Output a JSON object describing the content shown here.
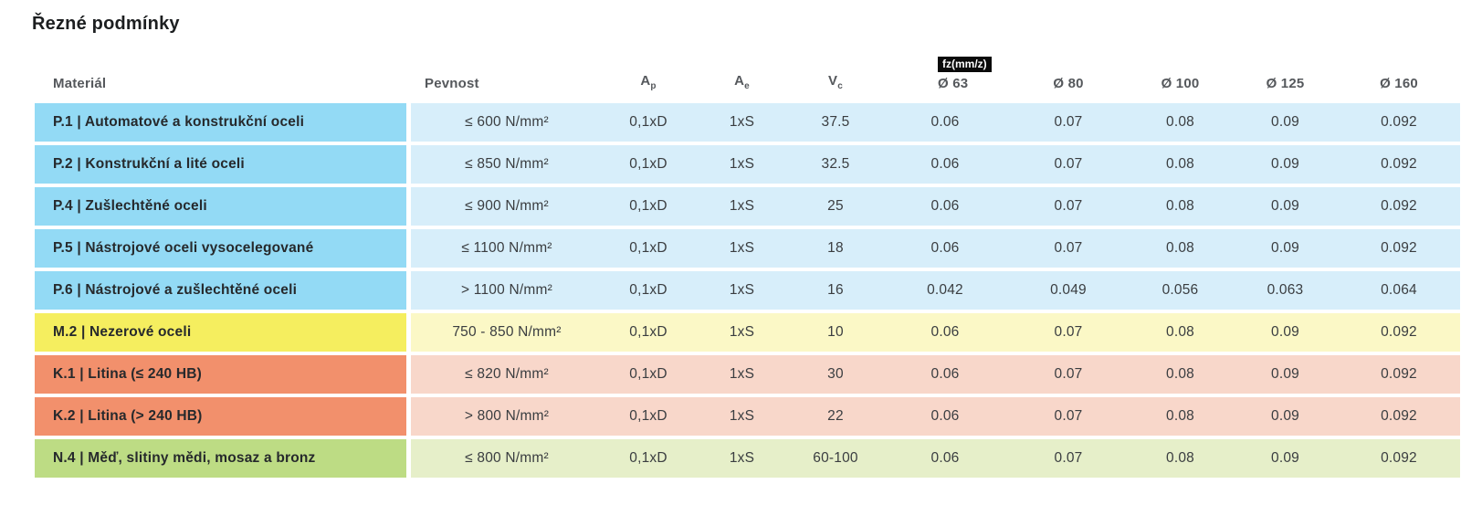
{
  "title": "Řezné podmínky",
  "table": {
    "headers": {
      "material": "Materiál",
      "pevnost": "Pevnost",
      "ap_base": "A",
      "ap_sub": "p",
      "ae_base": "A",
      "ae_sub": "e",
      "vc_base": "V",
      "vc_sub": "c",
      "fz_badge": "fz(mm/z)",
      "d63": "Ø 63",
      "d80": "Ø 80",
      "d100": "Ø 100",
      "d125": "Ø 125",
      "d160": "Ø 160"
    },
    "rows": [
      {
        "group": "blue",
        "material": "P.1 | Automatové a konstrukční oceli",
        "pevnost": "≤ 600 N/mm²",
        "ap": "0,1xD",
        "ae": "1xS",
        "vc": "37.5",
        "d63": "0.06",
        "d80": "0.07",
        "d100": "0.08",
        "d125": "0.09",
        "d160": "0.092"
      },
      {
        "group": "blue",
        "material": "P.2 | Konstrukční a lité oceli",
        "pevnost": "≤ 850 N/mm²",
        "ap": "0,1xD",
        "ae": "1xS",
        "vc": "32.5",
        "d63": "0.06",
        "d80": "0.07",
        "d100": "0.08",
        "d125": "0.09",
        "d160": "0.092"
      },
      {
        "group": "blue",
        "material": "P.4 | Zušlechtěné oceli",
        "pevnost": "≤ 900 N/mm²",
        "ap": "0,1xD",
        "ae": "1xS",
        "vc": "25",
        "d63": "0.06",
        "d80": "0.07",
        "d100": "0.08",
        "d125": "0.09",
        "d160": "0.092"
      },
      {
        "group": "blue",
        "material": "P.5 | Nástrojové oceli vysocelegované",
        "pevnost": "≤ 1100 N/mm²",
        "ap": "0,1xD",
        "ae": "1xS",
        "vc": "18",
        "d63": "0.06",
        "d80": "0.07",
        "d100": "0.08",
        "d125": "0.09",
        "d160": "0.092"
      },
      {
        "group": "blue",
        "material": "P.6 | Nástrojové a zušlechtěné oceli",
        "pevnost": "> 1100 N/mm²",
        "ap": "0,1xD",
        "ae": "1xS",
        "vc": "16",
        "d63": "0.042",
        "d80": "0.049",
        "d100": "0.056",
        "d125": "0.063",
        "d160": "0.064"
      },
      {
        "group": "yellow",
        "material": "M.2 | Nezerové oceli",
        "pevnost": "750 - 850 N/mm²",
        "ap": "0,1xD",
        "ae": "1xS",
        "vc": "10",
        "d63": "0.06",
        "d80": "0.07",
        "d100": "0.08",
        "d125": "0.09",
        "d160": "0.092"
      },
      {
        "group": "orange",
        "material": "K.1 | Litina (≤ 240 HB)",
        "pevnost": "≤ 820 N/mm²",
        "ap": "0,1xD",
        "ae": "1xS",
        "vc": "30",
        "d63": "0.06",
        "d80": "0.07",
        "d100": "0.08",
        "d125": "0.09",
        "d160": "0.092"
      },
      {
        "group": "orange",
        "material": "K.2 | Litina (> 240 HB)",
        "pevnost": "> 800 N/mm²",
        "ap": "0,1xD",
        "ae": "1xS",
        "vc": "22",
        "d63": "0.06",
        "d80": "0.07",
        "d100": "0.08",
        "d125": "0.09",
        "d160": "0.092"
      },
      {
        "group": "green",
        "material": "N.4 | Měď, slitiny mědi, mosaz a bronz",
        "pevnost": "≤ 800 N/mm²",
        "ap": "0,1xD",
        "ae": "1xS",
        "vc": "60-100",
        "d63": "0.06",
        "d80": "0.07",
        "d100": "0.08",
        "d125": "0.09",
        "d160": "0.092"
      }
    ]
  },
  "colors": {
    "blue_strong": "#93daf5",
    "blue_light": "#d7eefa",
    "yellow_strong": "#f5ee5f",
    "yellow_light": "#fbf8c6",
    "orange_strong": "#f2906c",
    "orange_light": "#f8d7ca",
    "green_strong": "#bddc84",
    "green_light": "#e6efc9",
    "badge_bg": "#0a0a0a",
    "badge_text": "#ffffff"
  }
}
